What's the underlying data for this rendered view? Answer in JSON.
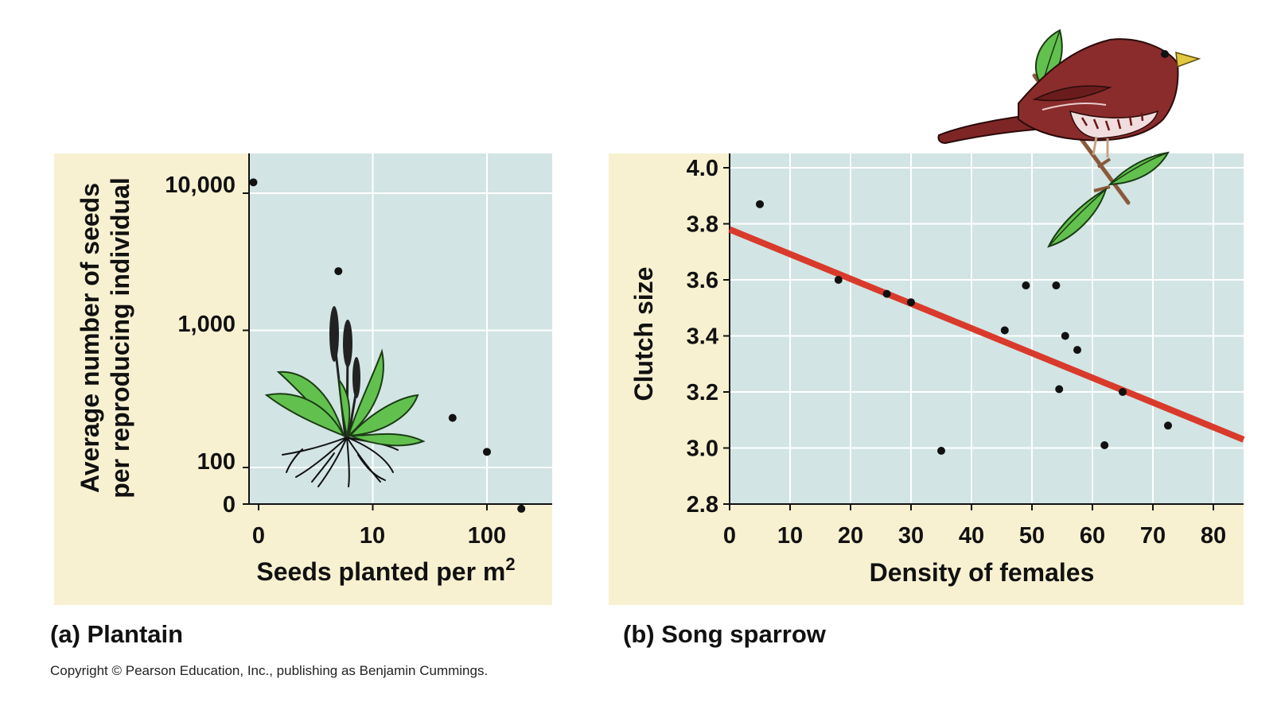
{
  "copyright": "Copyright © Pearson Education, Inc., publishing as Benjamin Cummings.",
  "colors": {
    "panel_bg": "#f8f1d1",
    "plot_bg": "#d2e4e4",
    "grid": "#ffffff",
    "point": "#111111",
    "fit_line": "#d93a2b",
    "leaf_green": "#62c14e",
    "sparrow_red": "#8a2c2c"
  },
  "icons": [
    "plantain-plant-illustration",
    "song-sparrow-illustration"
  ],
  "chart_data": [
    {
      "panel": "a",
      "caption": "(a) Plantain",
      "type": "scatter",
      "xlabel": "Seeds planted per m",
      "xlabel_superscript": "2",
      "ylabel": [
        "Average number of seeds",
        "per reproducing individual"
      ],
      "x_scale": "log",
      "y_scale": "log",
      "x_ticks": [
        "0",
        "10",
        "100"
      ],
      "y_ticks": [
        "10,000",
        "1,000",
        "100",
        "0"
      ],
      "grid": true,
      "points": [
        {
          "x": 0.9,
          "y": 12000
        },
        {
          "x": 5,
          "y": 2700
        },
        {
          "x": 50,
          "y": 230
        },
        {
          "x": 100,
          "y": 130
        },
        {
          "x": 200,
          "y": 50
        }
      ]
    },
    {
      "panel": "b",
      "caption": "(b) Song sparrow",
      "type": "scatter",
      "xlabel": "Density of females",
      "ylabel": "Clutch size",
      "xlim": [
        0,
        85
      ],
      "ylim": [
        2.8,
        4.0
      ],
      "x_ticks": [
        "0",
        "10",
        "20",
        "30",
        "40",
        "50",
        "60",
        "70",
        "80"
      ],
      "y_ticks": [
        "4.0",
        "3.8",
        "3.6",
        "3.4",
        "3.2",
        "3.0",
        "2.8"
      ],
      "grid": true,
      "points": [
        {
          "x": 5,
          "y": 3.87
        },
        {
          "x": 18,
          "y": 3.6
        },
        {
          "x": 26,
          "y": 3.55
        },
        {
          "x": 30,
          "y": 3.52
        },
        {
          "x": 35,
          "y": 2.99
        },
        {
          "x": 45.5,
          "y": 3.42
        },
        {
          "x": 49,
          "y": 3.58
        },
        {
          "x": 54,
          "y": 3.58
        },
        {
          "x": 54.5,
          "y": 3.21
        },
        {
          "x": 55.5,
          "y": 3.4
        },
        {
          "x": 57.5,
          "y": 3.35
        },
        {
          "x": 62,
          "y": 3.01
        },
        {
          "x": 65,
          "y": 3.2
        },
        {
          "x": 72.5,
          "y": 3.08
        }
      ],
      "fit_line": [
        {
          "x": 0,
          "y": 3.78
        },
        {
          "x": 85,
          "y": 3.03
        }
      ]
    }
  ]
}
